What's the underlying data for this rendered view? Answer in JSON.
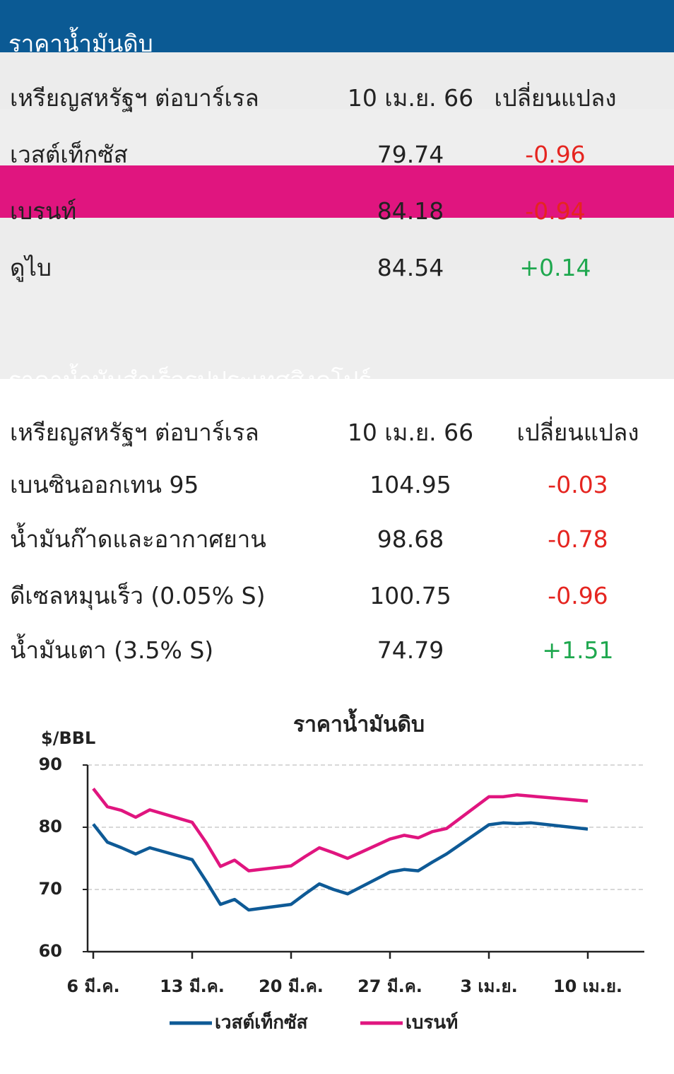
{
  "table1": {
    "title": "ราคาน้ำมันดิบ",
    "color": "#0b5a94",
    "header": [
      "เหรียญสหรัฐฯ ต่อบาร์เรล",
      "10 เม.ย. 66",
      "เปลี่ยนแปลง"
    ],
    "rows": [
      [
        "เวสต์เท็กซัส",
        "79.74",
        "-0.96"
      ],
      [
        "เบรนท์",
        "84.18",
        "-0.94"
      ],
      [
        "ดูไบ",
        "84.54",
        "+0.14"
      ]
    ]
  },
  "table2": {
    "title": "ราคาน้ำมันสำเร็จรูปประเทศสิงคโปร์",
    "color": "#e0157f",
    "header": [
      "เหรียญสหรัฐฯ ต่อบาร์เรล",
      "10 เม.ย. 66",
      "เปลี่ยนแปลง"
    ],
    "rows": [
      [
        "เบนซินออกเทน 95",
        "104.95",
        "-0.03"
      ],
      [
        "น้ำมันก๊าดและอากาศยาน",
        "98.68",
        "-0.78"
      ],
      [
        "ดีเซลหมุนเร็ว (0.05% S)",
        "100.75",
        "-0.96"
      ],
      [
        "น้ำมันเตา (3.5% S)",
        "74.79",
        "+1.51"
      ]
    ]
  },
  "chart_data": {
    "type": "line",
    "title": "ราคาน้ำมันดิบ",
    "y_label": "$/BBL",
    "x": [
      "03-06",
      "03-07",
      "03-08",
      "03-09",
      "03-10",
      "03-13",
      "03-14",
      "03-15",
      "03-16",
      "03-17",
      "03-20",
      "03-21",
      "03-22",
      "03-23",
      "03-24",
      "03-27",
      "03-28",
      "03-29",
      "03-30",
      "03-31",
      "04-03",
      "04-04",
      "04-05",
      "04-06",
      "04-10"
    ],
    "xlim": [
      "03-06",
      "04-14"
    ],
    "xticks": [
      {
        "value": "03-06",
        "label": "6 มี.ค."
      },
      {
        "value": "03-13",
        "label": "13 มี.ค."
      },
      {
        "value": "03-20",
        "label": "20 มี.ค."
      },
      {
        "value": "03-27",
        "label": "27 มี.ค."
      },
      {
        "value": "04-03",
        "label": "3 เม.ย."
      },
      {
        "value": "04-10",
        "label": "10 เม.ย."
      }
    ],
    "ylim": [
      60,
      90
    ],
    "yticks": [
      60,
      70,
      80,
      90
    ],
    "grid": true,
    "series": [
      {
        "name": "เวสต์เท็กซัส",
        "color": "#0e5a96",
        "values": [
          80.5,
          77.6,
          76.7,
          75.7,
          76.7,
          74.8,
          71.3,
          67.6,
          68.4,
          66.7,
          67.6,
          69.3,
          70.9,
          70.0,
          69.3,
          72.8,
          73.2,
          73.0,
          74.4,
          75.7,
          80.4,
          80.7,
          80.6,
          80.7,
          79.7
        ]
      },
      {
        "name": "เบรนท์",
        "color": "#e0157f",
        "values": [
          86.2,
          83.3,
          82.7,
          81.6,
          82.8,
          80.8,
          77.5,
          73.7,
          74.7,
          73.0,
          73.8,
          75.3,
          76.7,
          75.9,
          75.0,
          78.1,
          78.7,
          78.3,
          79.3,
          79.8,
          84.9,
          84.9,
          85.2,
          85.0,
          84.2
        ]
      }
    ]
  }
}
